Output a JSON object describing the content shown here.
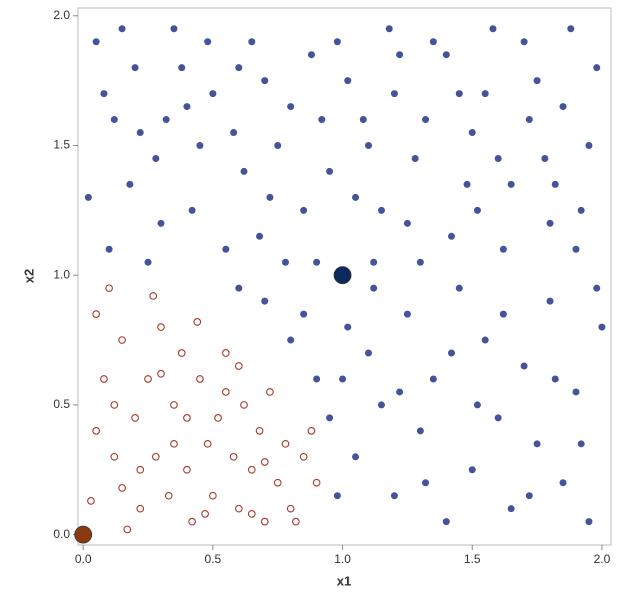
{
  "chart_data": {
    "type": "scatter",
    "x_label": "x1",
    "y_label": "x2",
    "xlim": [
      -0.02,
      2.035
    ],
    "ylim": [
      -0.04,
      2.03
    ],
    "xticks": [
      {
        "value": 0,
        "label": "0.0"
      },
      0.5,
      {
        "value": 1,
        "label": "1.0"
      },
      1.5,
      {
        "value": 2,
        "label": "2.0"
      }
    ],
    "yticks": [
      {
        "value": 0,
        "label": "0.0"
      },
      0.5,
      {
        "value": 1,
        "label": "1.0"
      },
      1.5,
      {
        "value": 2,
        "label": "2.0"
      }
    ],
    "series": [
      {
        "color": "#a8382a",
        "marker": "open",
        "x": [
          0.05,
          0.08,
          0.12,
          0.15,
          0.2,
          0.22,
          0.25,
          0.28,
          0.3,
          0.33,
          0.35,
          0.38,
          0.4,
          0.42,
          0.45,
          0.48,
          0.5,
          0.52,
          0.55,
          0.58,
          0.6,
          0.62,
          0.65,
          0.68,
          0.7,
          0.72,
          0.75,
          0.78,
          0.8,
          0.85,
          0.88,
          0.9,
          0.1,
          0.03,
          0.17,
          0.27,
          0.44,
          0.6,
          0.12,
          0.35,
          0.05,
          0.22,
          0.47,
          0.7,
          0.82,
          0.3,
          0.15,
          0.55,
          0.4,
          0.65
        ],
        "values": [
          0.85,
          0.6,
          0.3,
          0.75,
          0.45,
          0.1,
          0.6,
          0.3,
          0.8,
          0.15,
          0.5,
          0.7,
          0.25,
          0.05,
          0.6,
          0.35,
          0.15,
          0.45,
          0.7,
          0.3,
          0.1,
          0.5,
          0.25,
          0.4,
          0.05,
          0.55,
          0.2,
          0.35,
          0.1,
          0.3,
          0.4,
          0.2,
          0.95,
          0.13,
          0.02,
          0.92,
          0.82,
          0.65,
          0.5,
          0.35,
          0.4,
          0.25,
          0.08,
          0.28,
          0.05,
          0.62,
          0.18,
          0.55,
          0.45,
          0.08
        ]
      },
      {
        "color": "#44539a",
        "marker": "filled",
        "x": [
          0.05,
          0.12,
          0.2,
          0.28,
          0.35,
          0.42,
          0.5,
          0.58,
          0.65,
          0.72,
          0.8,
          0.88,
          0.95,
          1.02,
          1.1,
          1.18,
          1.25,
          1.32,
          1.4,
          1.48,
          1.55,
          1.62,
          1.7,
          1.78,
          1.85,
          1.92,
          1.98,
          0.02,
          0.1,
          0.18,
          0.25,
          0.32,
          0.38,
          0.45,
          0.55,
          0.62,
          0.7,
          0.78,
          0.85,
          0.92,
          1.05,
          1.12,
          1.2,
          1.28,
          1.35,
          1.42,
          1.5,
          1.58,
          1.65,
          1.72,
          1.8,
          1.88,
          1.95,
          0.08,
          0.15,
          0.22,
          0.3,
          0.4,
          0.48,
          0.6,
          0.68,
          0.75,
          0.9,
          0.98,
          1.08,
          1.15,
          1.22,
          1.3,
          1.45,
          1.52,
          1.6,
          1.75,
          1.82,
          1.9,
          1.05,
          1.1,
          1.15,
          1.2,
          1.25,
          1.3,
          1.35,
          1.4,
          1.45,
          1.5,
          1.55,
          1.6,
          1.65,
          1.7,
          1.75,
          1.8,
          1.85,
          1.9,
          1.95,
          2.0,
          1.02,
          1.12,
          1.22,
          1.32,
          1.42,
          1.52,
          1.62,
          1.72,
          1.82,
          1.92,
          1.98,
          0.8,
          0.9,
          0.7,
          0.6,
          0.95,
          0.98,
          1.0,
          0.85
        ],
        "values": [
          1.9,
          1.6,
          1.8,
          1.45,
          1.95,
          1.25,
          1.7,
          1.55,
          1.9,
          1.3,
          1.65,
          1.85,
          1.4,
          1.75,
          1.5,
          1.95,
          1.2,
          1.6,
          1.85,
          1.35,
          1.7,
          1.1,
          1.9,
          1.45,
          1.65,
          1.25,
          1.8,
          1.3,
          1.1,
          1.35,
          1.05,
          1.6,
          1.8,
          1.5,
          1.1,
          1.4,
          1.75,
          1.05,
          1.25,
          1.6,
          1.3,
          1.05,
          1.7,
          1.45,
          1.9,
          1.15,
          1.55,
          1.95,
          1.35,
          1.6,
          1.2,
          1.95,
          1.5,
          1.7,
          1.95,
          1.55,
          1.2,
          1.65,
          1.9,
          1.8,
          1.15,
          1.5,
          1.05,
          1.9,
          1.6,
          1.25,
          1.85,
          1.05,
          1.7,
          1.25,
          1.45,
          1.75,
          1.35,
          1.1,
          0.3,
          0.7,
          0.5,
          0.15,
          0.85,
          0.4,
          0.6,
          0.05,
          0.95,
          0.25,
          0.75,
          0.45,
          0.1,
          0.65,
          0.35,
          0.9,
          0.2,
          0.55,
          0.05,
          0.8,
          0.8,
          0.95,
          0.55,
          0.2,
          0.7,
          0.5,
          0.85,
          0.15,
          0.6,
          0.35,
          0.95,
          0.75,
          0.6,
          0.9,
          0.95,
          0.45,
          0.15,
          0.6,
          0.85
        ]
      },
      {
        "color": "#8b3a0f",
        "marker": "large",
        "x": [
          0
        ],
        "values": [
          0
        ]
      },
      {
        "color": "#0a2a5e",
        "marker": "large",
        "x": [
          1
        ],
        "values": [
          1
        ]
      }
    ]
  }
}
